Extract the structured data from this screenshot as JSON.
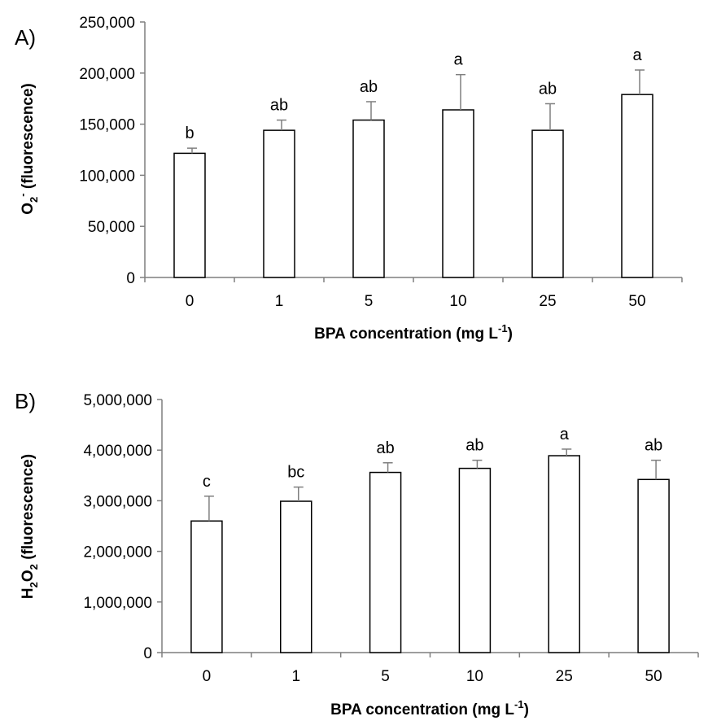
{
  "chart_data": [
    {
      "type": "bar",
      "panel_label": "A)",
      "categories": [
        "0",
        "1",
        "5",
        "10",
        "25",
        "50"
      ],
      "series": [
        {
          "values": [
            121500,
            144000,
            154000,
            164000,
            144000,
            179000
          ],
          "errors": [
            5000,
            10000,
            18000,
            34500,
            26000,
            24000
          ]
        }
      ],
      "significance_labels": [
        "b",
        "ab",
        "ab",
        "a",
        "ab",
        "a"
      ],
      "ylim": [
        0,
        250000
      ],
      "yticks": [
        0,
        50000,
        100000,
        150000,
        200000,
        250000
      ],
      "ytick_labels": [
        "0",
        "50,000",
        "100,000",
        "150,000",
        "200,000",
        "250,000"
      ],
      "ylabel": {
        "base": "O",
        "sub": "2",
        "sup": "-",
        "rest": " (fluorescence)"
      },
      "xlabel": {
        "main": "BPA concentration (mg L",
        "sup": "-1",
        "close": ")"
      },
      "grid": false,
      "bar_fill": "#ffffff",
      "bar_stroke": "#000000",
      "axis_color": "#7f7f7f"
    },
    {
      "type": "bar",
      "panel_label": "B)",
      "categories": [
        "0",
        "1",
        "5",
        "10",
        "25",
        "50"
      ],
      "series": [
        {
          "values": [
            2600000,
            2990000,
            3560000,
            3640000,
            3890000,
            3420000
          ],
          "errors": [
            490000,
            280000,
            190000,
            160000,
            130000,
            380000
          ]
        }
      ],
      "significance_labels": [
        "c",
        "bc",
        "ab",
        "ab",
        "a",
        "ab"
      ],
      "ylim": [
        0,
        5000000
      ],
      "yticks": [
        0,
        1000000,
        2000000,
        3000000,
        4000000,
        5000000
      ],
      "ytick_labels": [
        "0",
        "1,000,000",
        "2,000,000",
        "3,000,000",
        "4,000,000",
        "5,000,000"
      ],
      "ylabel": {
        "pre": "H",
        "sub1": "2",
        "mid": "O",
        "sub2": "2",
        "rest": " (fluorescence)"
      },
      "xlabel": {
        "main": "BPA concentration (mg L",
        "sup": "-1",
        "close": ")"
      },
      "grid": false,
      "bar_fill": "#ffffff",
      "bar_stroke": "#000000",
      "axis_color": "#7f7f7f"
    }
  ]
}
